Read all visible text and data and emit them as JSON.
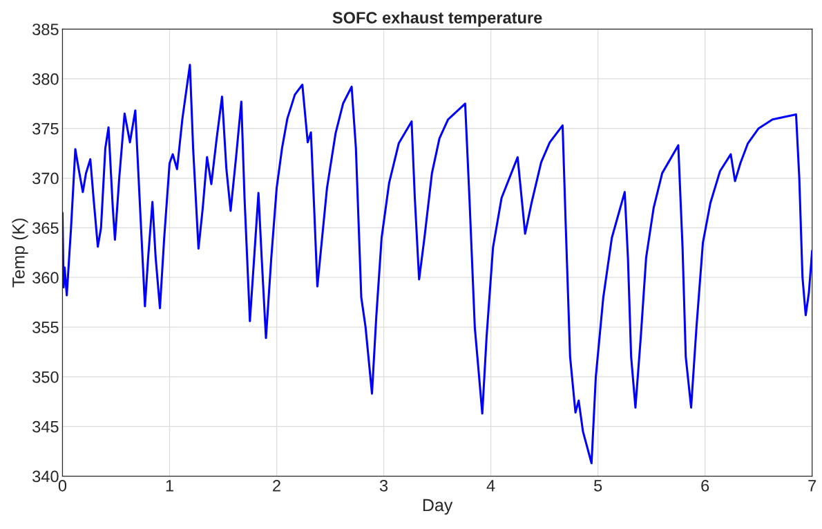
{
  "chart_data": {
    "type": "line",
    "title": "SOFC exhaust temperature",
    "xlabel": "Day",
    "ylabel": "Temp (K)",
    "xlim": [
      0,
      7
    ],
    "xticks": [
      0,
      1,
      2,
      3,
      4,
      5,
      6,
      7
    ],
    "ylim": [
      340,
      385
    ],
    "yticks": [
      340,
      345,
      350,
      355,
      360,
      365,
      370,
      375,
      380,
      385
    ],
    "grid": true,
    "line_style": "solid",
    "series": [
      {
        "color": "#0000ff",
        "x": [
          0,
          0.01,
          0.02,
          0.04,
          0.08,
          0.12,
          0.15,
          0.19,
          0.22,
          0.26,
          0.29,
          0.33,
          0.36,
          0.4,
          0.43,
          0.47,
          0.49,
          0.53,
          0.58,
          0.63,
          0.68,
          0.72,
          0.77,
          0.8,
          0.84,
          0.87,
          0.91,
          0.95,
          1.0,
          1.03,
          1.07,
          1.12,
          1.19,
          1.22,
          1.27,
          1.31,
          1.35,
          1.39,
          1.44,
          1.49,
          1.53,
          1.57,
          1.62,
          1.67,
          1.7,
          1.75,
          1.79,
          1.83,
          1.86,
          1.9,
          1.95,
          2.0,
          2.05,
          2.1,
          2.17,
          2.24,
          2.29,
          2.32,
          2.35,
          2.38,
          2.42,
          2.47,
          2.55,
          2.62,
          2.7,
          2.74,
          2.79,
          2.83,
          2.89,
          2.93,
          2.98,
          3.05,
          3.14,
          3.26,
          3.29,
          3.33,
          3.38,
          3.45,
          3.52,
          3.6,
          3.76,
          3.8,
          3.85,
          3.92,
          3.96,
          4.02,
          4.1,
          4.25,
          4.32,
          4.38,
          4.47,
          4.55,
          4.67,
          4.7,
          4.74,
          4.79,
          4.82,
          4.86,
          4.94,
          4.98,
          5.05,
          5.13,
          5.25,
          5.28,
          5.31,
          5.35,
          5.4,
          5.45,
          5.52,
          5.6,
          5.75,
          5.79,
          5.82,
          5.87,
          5.92,
          5.98,
          6.05,
          6.14,
          6.24,
          6.28,
          6.33,
          6.4,
          6.5,
          6.63,
          6.85,
          6.88,
          6.91,
          6.94,
          6.97,
          7.0
        ],
        "values": [
          366.5,
          359,
          361,
          358.2,
          365,
          372.9,
          371,
          368.6,
          370.5,
          371.9,
          368,
          363.1,
          365,
          373,
          375.1,
          367,
          363.8,
          370,
          376.5,
          373.6,
          376.8,
          368,
          357.1,
          362,
          367.6,
          362,
          356.9,
          364,
          371.5,
          372.4,
          370.9,
          376,
          381.4,
          373,
          362.9,
          367,
          372.1,
          369.4,
          374,
          378.2,
          371,
          366.7,
          372,
          377.7,
          368,
          355.6,
          362,
          368.5,
          362,
          353.9,
          362,
          369,
          373,
          376,
          378.4,
          379.4,
          373.6,
          374.6,
          367,
          359.1,
          363.5,
          369,
          374.5,
          377.5,
          379.2,
          373,
          358,
          355,
          348.3,
          356,
          364,
          369.5,
          373.5,
          375.7,
          368,
          359.8,
          364,
          370.5,
          374,
          375.9,
          377.5,
          368,
          355,
          346.3,
          354,
          363,
          368,
          372.1,
          364.4,
          367.5,
          371.6,
          373.6,
          375.3,
          365,
          352,
          346.4,
          347.6,
          344.5,
          341.3,
          350,
          358,
          364,
          368.6,
          362,
          352,
          346.9,
          354,
          362,
          367,
          370.5,
          373.3,
          363,
          352,
          346.9,
          355,
          363.5,
          367.5,
          370.7,
          372.4,
          369.7,
          371.5,
          373.5,
          375,
          375.9,
          376.4,
          370,
          360,
          356.2,
          358.5,
          362.7
        ]
      }
    ]
  }
}
